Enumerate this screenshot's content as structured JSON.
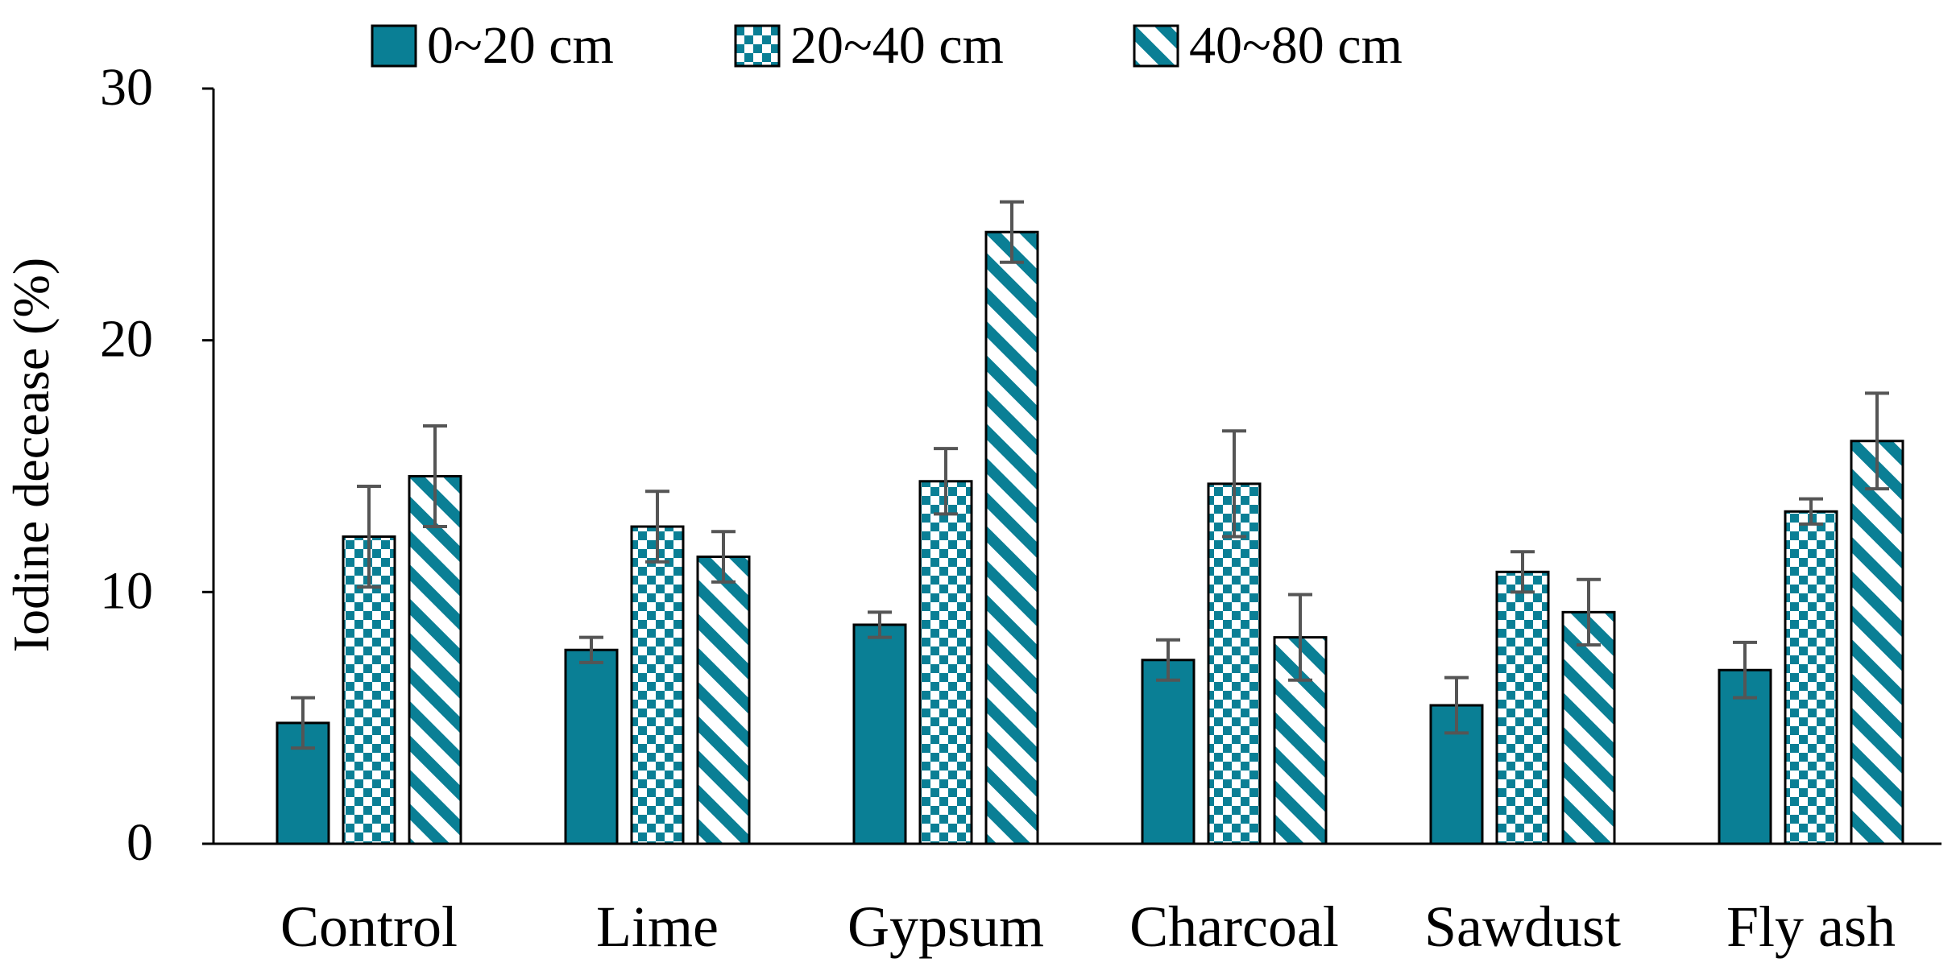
{
  "chart_data": {
    "type": "bar",
    "title": "",
    "xlabel": "",
    "ylabel": "Iodine decease (%)",
    "ylim": [
      0,
      30
    ],
    "yticks": [
      0,
      10,
      20,
      30
    ],
    "grid": false,
    "legend_position": "top",
    "categories": [
      "Control",
      "Lime",
      "Gypsum",
      "Charcoal",
      "Sawdust",
      "Fly ash"
    ],
    "series": [
      {
        "name": "0~20 cm",
        "pattern": "solid",
        "values": [
          4.8,
          7.7,
          8.7,
          7.3,
          5.5,
          6.9
        ],
        "errors": [
          1.0,
          0.5,
          0.5,
          0.8,
          1.1,
          1.1
        ]
      },
      {
        "name": "20~40 cm",
        "pattern": "checkered",
        "values": [
          12.2,
          12.6,
          14.4,
          14.3,
          10.8,
          13.2
        ],
        "errors": [
          2.0,
          1.4,
          1.3,
          2.1,
          0.8,
          0.5
        ]
      },
      {
        "name": "40~80 cm",
        "pattern": "diagonal",
        "values": [
          14.6,
          11.4,
          24.3,
          8.2,
          9.2,
          16.0
        ],
        "errors": [
          2.0,
          1.0,
          1.2,
          1.7,
          1.3,
          1.9
        ]
      }
    ],
    "colors": {
      "bar": "#0a7f95",
      "outline": "#000000",
      "error_bar": "#555555",
      "axis": "#000000"
    }
  }
}
